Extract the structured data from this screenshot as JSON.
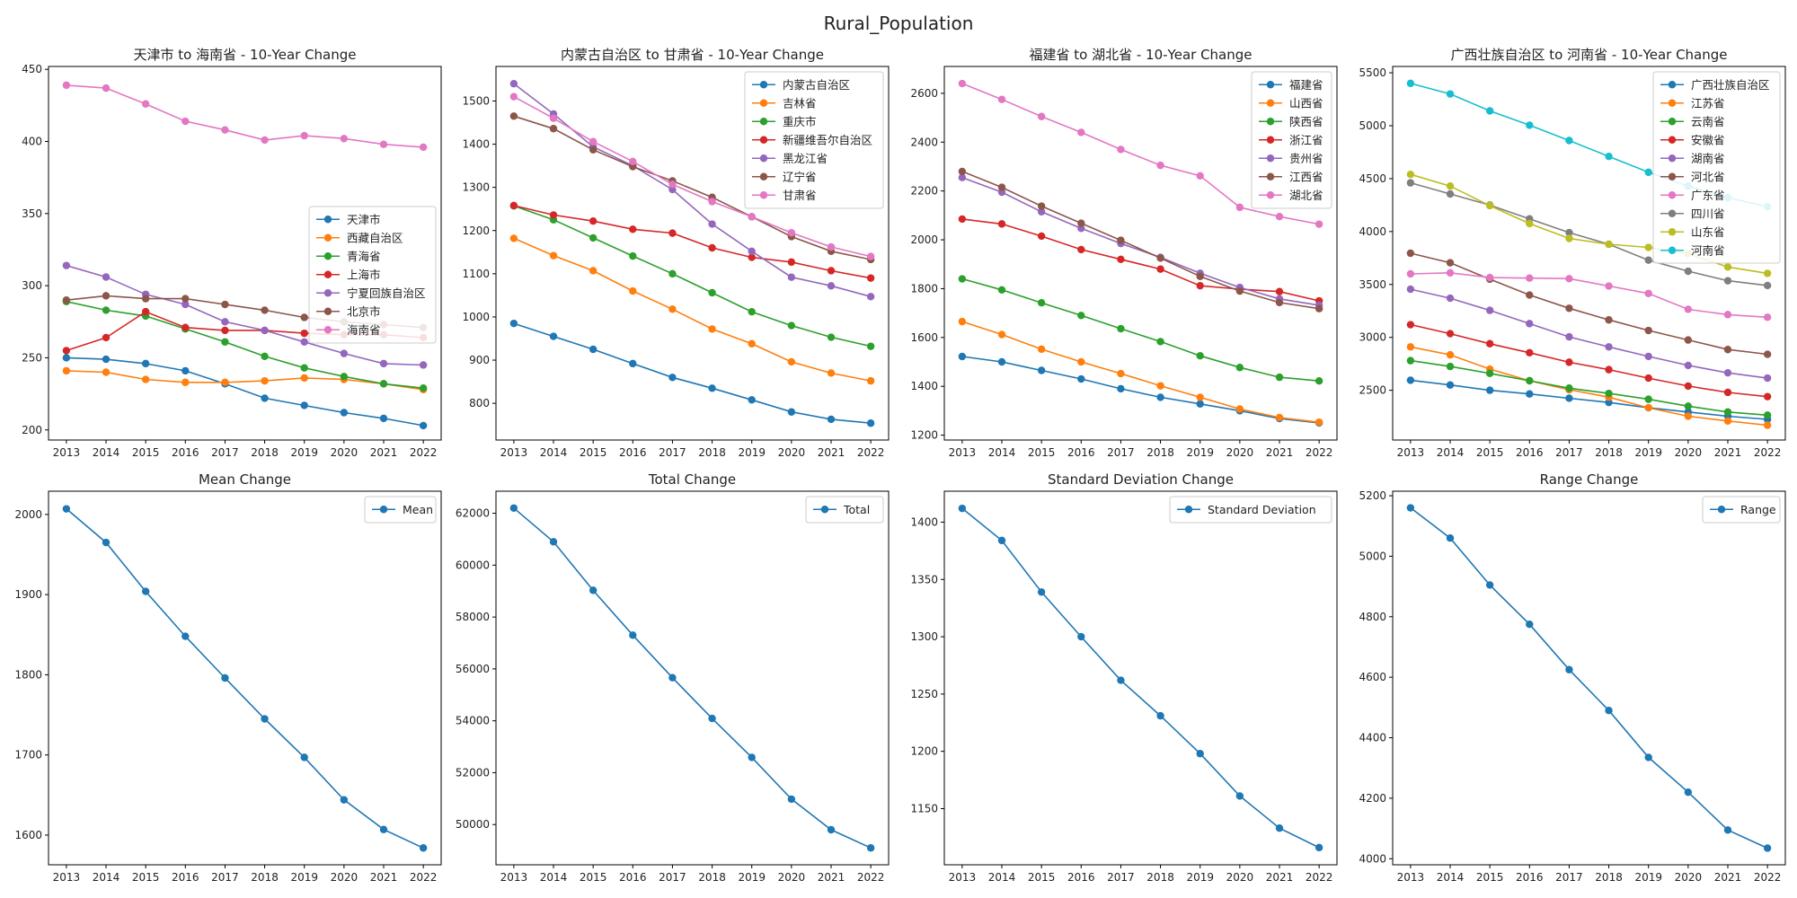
{
  "figure": {
    "title": "Rural_Population"
  },
  "chart_data": [
    {
      "type": "line",
      "title": "天津市 to 海南省 - 10-Year Change",
      "x": [
        2013,
        2014,
        2015,
        2016,
        2017,
        2018,
        2019,
        2020,
        2021,
        2022
      ],
      "ylim": [
        193,
        452
      ],
      "yticks": [
        200,
        250,
        300,
        350,
        400,
        450
      ],
      "legend_position": "center-right",
      "series": [
        {
          "name": "天津市",
          "color": "#1f77b4",
          "values": [
            250,
            249,
            246,
            241,
            232,
            222,
            217,
            212,
            208,
            203
          ]
        },
        {
          "name": "西藏自治区",
          "color": "#ff7f0e",
          "values": [
            241,
            240,
            235,
            233,
            233,
            234,
            236,
            235,
            232,
            228
          ]
        },
        {
          "name": "青海省",
          "color": "#2ca02c",
          "values": [
            289,
            283,
            279,
            270,
            261,
            251,
            243,
            237,
            232,
            229
          ]
        },
        {
          "name": "上海市",
          "color": "#d62728",
          "values": [
            255,
            264,
            282,
            271,
            269,
            269,
            267,
            266,
            266,
            264
          ]
        },
        {
          "name": "宁夏回族自治区",
          "color": "#9467bd",
          "values": [
            314,
            306,
            294,
            287,
            275,
            269,
            261,
            253,
            246,
            245
          ]
        },
        {
          "name": "北京市",
          "color": "#8c564b",
          "values": [
            290,
            293,
            291,
            291,
            287,
            283,
            278,
            275,
            273,
            271
          ]
        },
        {
          "name": "海南省",
          "color": "#e377c2",
          "values": [
            439,
            437,
            426,
            414,
            408,
            401,
            404,
            402,
            398,
            396
          ]
        }
      ]
    },
    {
      "type": "line",
      "title": "内蒙古自治区 to 甘肃省 - 10-Year Change",
      "x": [
        2013,
        2014,
        2015,
        2016,
        2017,
        2018,
        2019,
        2020,
        2021,
        2022
      ],
      "ylim": [
        715,
        1580
      ],
      "yticks": [
        800,
        900,
        1000,
        1100,
        1200,
        1300,
        1400,
        1500
      ],
      "legend_position": "top-right",
      "series": [
        {
          "name": "内蒙古自治区",
          "color": "#1f77b4",
          "values": [
            985,
            955,
            925,
            892,
            860,
            835,
            808,
            780,
            763,
            754
          ]
        },
        {
          "name": "吉林省",
          "color": "#ff7f0e",
          "values": [
            1182,
            1142,
            1107,
            1060,
            1018,
            972,
            938,
            896,
            870,
            852
          ]
        },
        {
          "name": "重庆市",
          "color": "#2ca02c",
          "values": [
            1257,
            1225,
            1183,
            1141,
            1100,
            1056,
            1012,
            980,
            953,
            932
          ]
        },
        {
          "name": "新疆维吾尔自治区",
          "color": "#d62728",
          "values": [
            1258,
            1236,
            1222,
            1203,
            1194,
            1160,
            1138,
            1127,
            1107,
            1090
          ]
        },
        {
          "name": "黑龙江省",
          "color": "#9467bd",
          "values": [
            1540,
            1470,
            1394,
            1350,
            1295,
            1215,
            1152,
            1092,
            1072,
            1047
          ]
        },
        {
          "name": "辽宁省",
          "color": "#8c564b",
          "values": [
            1465,
            1436,
            1387,
            1348,
            1315,
            1277,
            1232,
            1186,
            1152,
            1133
          ]
        },
        {
          "name": "甘肃省",
          "color": "#e377c2",
          "values": [
            1510,
            1460,
            1406,
            1360,
            1307,
            1267,
            1232,
            1195,
            1162,
            1140
          ]
        }
      ]
    },
    {
      "type": "line",
      "title": "福建省 to 湖北省 - 10-Year Change",
      "x": [
        2013,
        2014,
        2015,
        2016,
        2017,
        2018,
        2019,
        2020,
        2021,
        2022
      ],
      "ylim": [
        1180,
        2710
      ],
      "yticks": [
        1200,
        1400,
        1600,
        1800,
        2000,
        2200,
        2400,
        2600
      ],
      "legend_position": "top-right",
      "series": [
        {
          "name": "福建省",
          "color": "#1f77b4",
          "values": [
            1522,
            1500,
            1465,
            1430,
            1390,
            1355,
            1328,
            1300,
            1268,
            1250
          ]
        },
        {
          "name": "山西省",
          "color": "#ff7f0e",
          "values": [
            1665,
            1612,
            1552,
            1500,
            1452,
            1402,
            1355,
            1307,
            1272,
            1253
          ]
        },
        {
          "name": "陕西省",
          "color": "#2ca02c",
          "values": [
            1840,
            1795,
            1742,
            1690,
            1636,
            1583,
            1525,
            1477,
            1437,
            1422
          ]
        },
        {
          "name": "浙江省",
          "color": "#d62728",
          "values": [
            2085,
            2065,
            2015,
            1960,
            1920,
            1880,
            1812,
            1798,
            1788,
            1750
          ]
        },
        {
          "name": "贵州省",
          "color": "#9467bd",
          "values": [
            2255,
            2195,
            2115,
            2047,
            1985,
            1928,
            1863,
            1805,
            1758,
            1732
          ]
        },
        {
          "name": "江西省",
          "color": "#8c564b",
          "values": [
            2280,
            2215,
            2138,
            2068,
            1998,
            1925,
            1850,
            1790,
            1743,
            1718
          ]
        },
        {
          "name": "湖北省",
          "color": "#e377c2",
          "values": [
            2640,
            2575,
            2505,
            2440,
            2370,
            2305,
            2262,
            2133,
            2095,
            2064
          ]
        }
      ]
    },
    {
      "type": "line",
      "title": "广西壮族自治区 to 河南省 - 10-Year Change",
      "x": [
        2013,
        2014,
        2015,
        2016,
        2017,
        2018,
        2019,
        2020,
        2021,
        2022
      ],
      "ylim": [
        2030,
        5560
      ],
      "yticks": [
        2500,
        3000,
        3500,
        4000,
        4500,
        5000,
        5500
      ],
      "legend_position": "top-right",
      "series": [
        {
          "name": "广西壮族自治区",
          "color": "#1f77b4",
          "values": [
            2595,
            2550,
            2500,
            2465,
            2425,
            2385,
            2335,
            2295,
            2255,
            2225
          ]
        },
        {
          "name": "江苏省",
          "color": "#ff7f0e",
          "values": [
            2910,
            2835,
            2700,
            2590,
            2505,
            2435,
            2335,
            2255,
            2210,
            2170
          ]
        },
        {
          "name": "云南省",
          "color": "#2ca02c",
          "values": [
            2780,
            2725,
            2660,
            2590,
            2520,
            2470,
            2415,
            2350,
            2295,
            2265
          ]
        },
        {
          "name": "安徽省",
          "color": "#d62728",
          "values": [
            3120,
            3035,
            2940,
            2855,
            2765,
            2695,
            2615,
            2540,
            2480,
            2440
          ]
        },
        {
          "name": "湖南省",
          "color": "#9467bd",
          "values": [
            3455,
            3370,
            3255,
            3130,
            3005,
            2910,
            2820,
            2735,
            2665,
            2615
          ]
        },
        {
          "name": "河北省",
          "color": "#8c564b",
          "values": [
            3795,
            3705,
            3550,
            3400,
            3275,
            3165,
            3065,
            2975,
            2885,
            2840
          ]
        },
        {
          "name": "广东省",
          "color": "#e377c2",
          "values": [
            3600,
            3610,
            3565,
            3560,
            3555,
            3485,
            3415,
            3265,
            3215,
            3190
          ]
        },
        {
          "name": "四川省",
          "color": "#7f7f7f",
          "values": [
            4460,
            4355,
            4250,
            4120,
            3990,
            3880,
            3730,
            3625,
            3535,
            3490
          ]
        },
        {
          "name": "山东省",
          "color": "#bcbd22",
          "values": [
            4540,
            4430,
            4245,
            4075,
            3935,
            3880,
            3850,
            3790,
            3665,
            3605
          ]
        },
        {
          "name": "河南省",
          "color": "#17becf",
          "values": [
            5400,
            5300,
            5140,
            5005,
            4860,
            4710,
            4560,
            4430,
            4320,
            4235
          ]
        }
      ]
    },
    {
      "type": "line",
      "title": "Mean Change",
      "x": [
        2013,
        2014,
        2015,
        2016,
        2017,
        2018,
        2019,
        2020,
        2021,
        2022
      ],
      "ylim": [
        1563,
        2029
      ],
      "yticks": [
        1600,
        1700,
        1800,
        1900,
        2000
      ],
      "legend_position": "top-right",
      "series": [
        {
          "name": "Mean",
          "color": "#1f77b4",
          "values": [
            2007,
            1965,
            1904,
            1848,
            1796,
            1745,
            1697,
            1644,
            1607,
            1584
          ]
        }
      ]
    },
    {
      "type": "line",
      "title": "Total Change",
      "x": [
        2013,
        2014,
        2015,
        2016,
        2017,
        2018,
        2019,
        2020,
        2021,
        2022
      ],
      "ylim": [
        48450,
        62850
      ],
      "yticks": [
        50000,
        52000,
        54000,
        56000,
        58000,
        60000,
        62000
      ],
      "legend_position": "top-right",
      "series": [
        {
          "name": "Total",
          "color": "#1f77b4",
          "values": [
            62200,
            60900,
            59030,
            57300,
            55660,
            54090,
            52590,
            50980,
            49800,
            49100
          ]
        }
      ]
    },
    {
      "type": "line",
      "title": "Standard Deviation Change",
      "x": [
        2013,
        2014,
        2015,
        2016,
        2017,
        2018,
        2019,
        2020,
        2021,
        2022
      ],
      "ylim": [
        1101,
        1427
      ],
      "yticks": [
        1150,
        1200,
        1250,
        1300,
        1350,
        1400
      ],
      "legend_position": "top-right",
      "series": [
        {
          "name": "Standard Deviation",
          "color": "#1f77b4",
          "values": [
            1412,
            1384,
            1339,
            1300,
            1262,
            1231,
            1198,
            1161,
            1133,
            1116
          ]
        }
      ]
    },
    {
      "type": "line",
      "title": "Range Change",
      "x": [
        2013,
        2014,
        2015,
        2016,
        2017,
        2018,
        2019,
        2020,
        2021,
        2022
      ],
      "ylim": [
        3980,
        5215
      ],
      "yticks": [
        4000,
        4200,
        4400,
        4600,
        4800,
        5000,
        5200
      ],
      "legend_position": "top-right",
      "series": [
        {
          "name": "Range",
          "color": "#1f77b4",
          "values": [
            5160,
            5060,
            4905,
            4775,
            4625,
            4490,
            4335,
            4220,
            4095,
            4035
          ]
        }
      ]
    }
  ]
}
